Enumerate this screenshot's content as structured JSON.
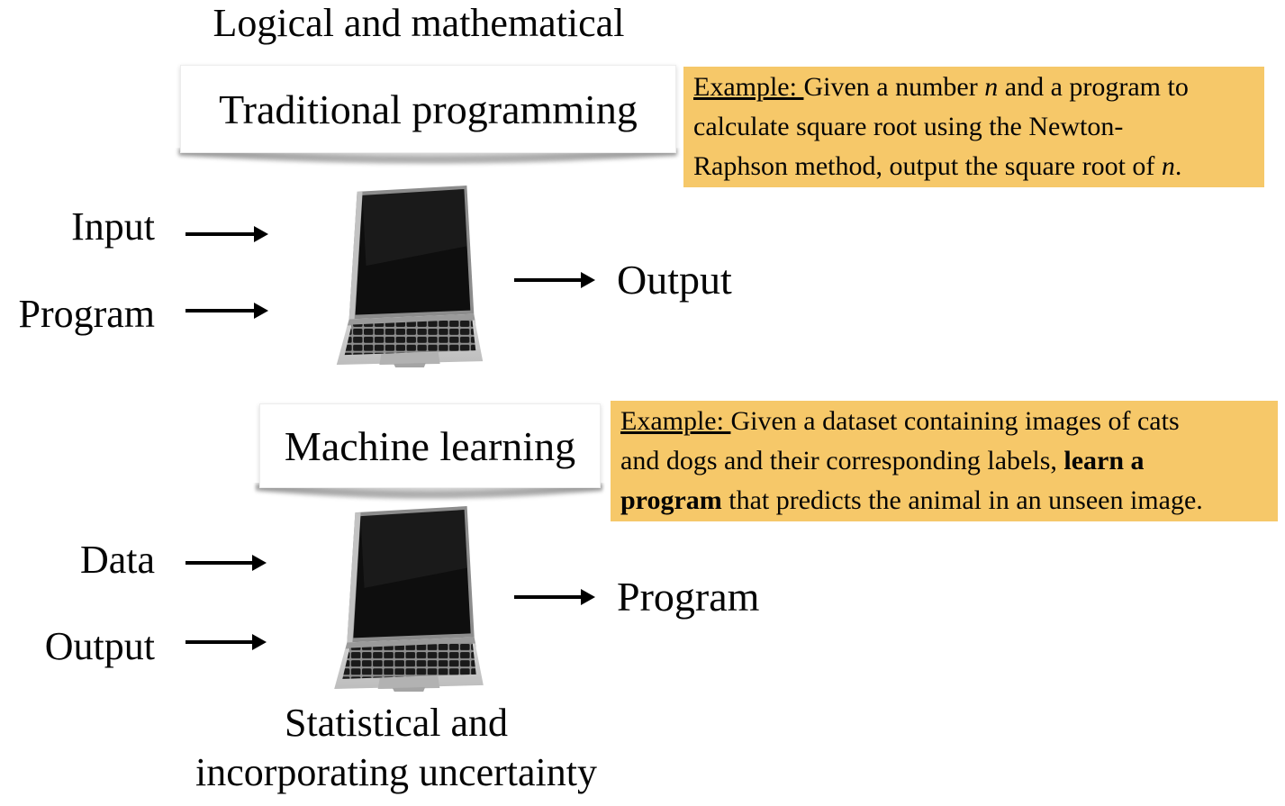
{
  "colors": {
    "highlight_bg": "#F6C869",
    "text": "#050505",
    "card_shadow": "#a8a8a8"
  },
  "top": {
    "heading": "Logical and mathematical",
    "box_title": "Traditional programming",
    "input_labels": [
      "Input",
      "Program"
    ],
    "output_label": "Output",
    "example": {
      "lines": [
        [
          {
            "text": "Example: ",
            "style": "underline"
          },
          {
            "text": "Given a number "
          },
          {
            "text": "n",
            "style": "italic"
          },
          {
            "text": " and a program to"
          }
        ],
        [
          {
            "text": "calculate square root using the Newton-"
          }
        ],
        [
          {
            "text": "Raphson method, output the square root of "
          },
          {
            "text": "n",
            "style": "italic"
          },
          {
            "text": "."
          }
        ]
      ]
    }
  },
  "bottom": {
    "box_title": "Machine learning",
    "input_labels": [
      "Data",
      "Output"
    ],
    "output_label": "Program",
    "example": {
      "lines": [
        [
          {
            "text": "Example: ",
            "style": "underline"
          },
          {
            "text": "Given a dataset containing images of cats"
          }
        ],
        [
          {
            "text": "and dogs and their corresponding labels, "
          },
          {
            "text": "learn a",
            "style": "bold"
          }
        ],
        [
          {
            "text": "program",
            "style": "bold"
          },
          {
            "text": " that predicts the animal in an unseen image."
          }
        ]
      ]
    },
    "caption_lines": [
      "Statistical and",
      "incorporating uncertainty"
    ]
  }
}
